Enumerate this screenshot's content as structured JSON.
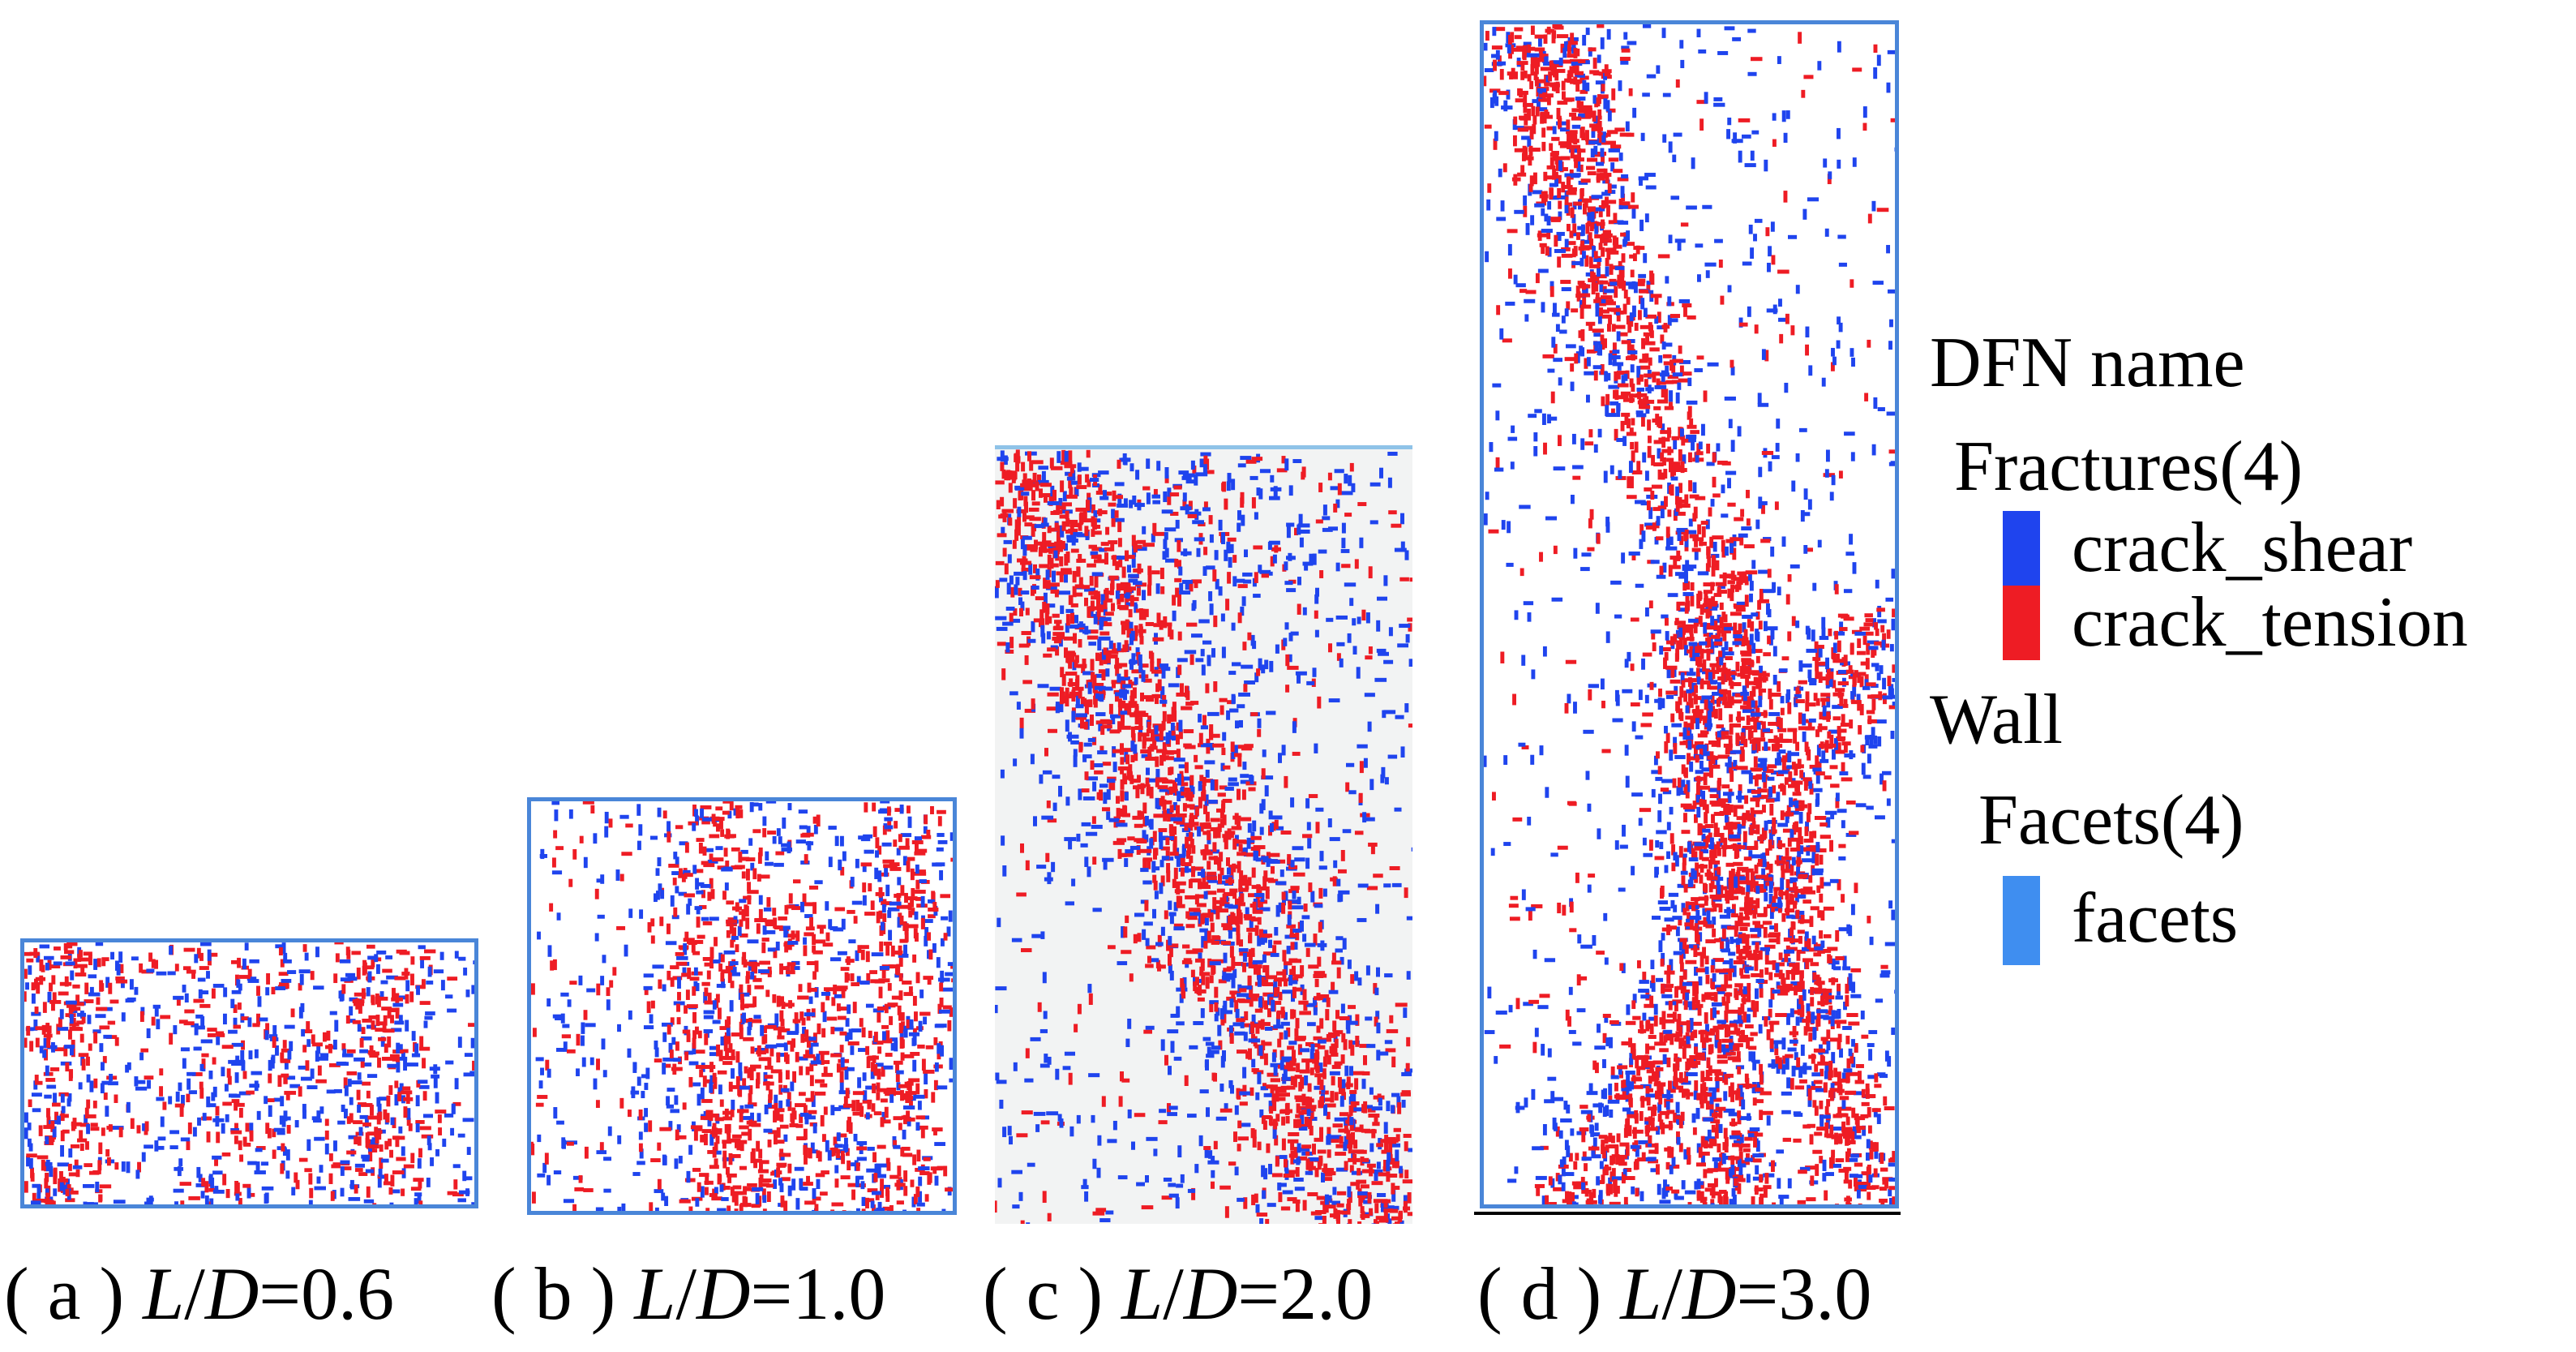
{
  "panels": [
    {
      "id": "a",
      "caption_prefix": "( a )",
      "ratio_label_L": "L",
      "ratio_label_slash": "/",
      "ratio_label_D": "D",
      "ratio_value": "=0.6"
    },
    {
      "id": "b",
      "caption_prefix": "( b )",
      "ratio_label_L": "L",
      "ratio_label_slash": "/",
      "ratio_label_D": "D",
      "ratio_value": "=1.0"
    },
    {
      "id": "c",
      "caption_prefix": "( c )",
      "ratio_label_L": "L",
      "ratio_label_slash": "/",
      "ratio_label_D": "D",
      "ratio_value": "=2.0"
    },
    {
      "id": "d",
      "caption_prefix": "( d )",
      "ratio_label_L": "L",
      "ratio_label_slash": "/",
      "ratio_label_D": "D",
      "ratio_value": "=3.0"
    }
  ],
  "legend": {
    "title": "DFN name",
    "fractures_group": "Fractures(4)",
    "items_fractures": [
      {
        "label": "crack_shear",
        "color": "#1f44ee"
      },
      {
        "label": "crack_tension",
        "color": "#ee1c24"
      }
    ],
    "wall_group": "Wall",
    "facets_group": "Facets(4)",
    "items_wall": [
      {
        "label": "facets",
        "color": "#3f8ef0"
      }
    ]
  },
  "colors": {
    "shear": "#1f44ee",
    "tension": "#ee1c24",
    "wall": "#4a86d8"
  }
}
